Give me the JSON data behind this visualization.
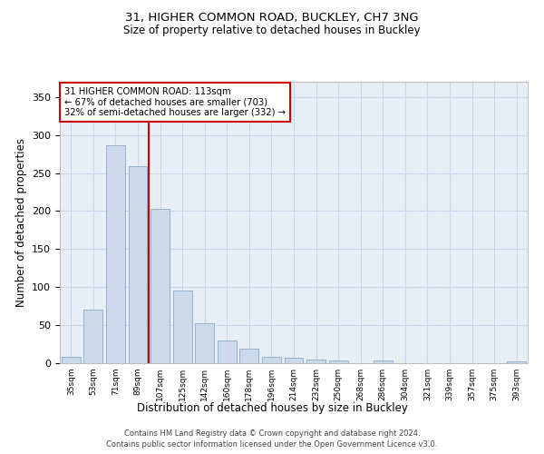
{
  "title1": "31, HIGHER COMMON ROAD, BUCKLEY, CH7 3NG",
  "title2": "Size of property relative to detached houses in Buckley",
  "xlabel": "Distribution of detached houses by size in Buckley",
  "ylabel": "Number of detached properties",
  "bar_color": "#ccd9ea",
  "bar_edge_color": "#8baac8",
  "categories": [
    "35sqm",
    "53sqm",
    "71sqm",
    "89sqm",
    "107sqm",
    "125sqm",
    "142sqm",
    "160sqm",
    "178sqm",
    "196sqm",
    "214sqm",
    "232sqm",
    "250sqm",
    "268sqm",
    "286sqm",
    "304sqm",
    "321sqm",
    "339sqm",
    "357sqm",
    "375sqm",
    "393sqm"
  ],
  "values": [
    8,
    71,
    287,
    259,
    203,
    95,
    52,
    30,
    19,
    8,
    7,
    5,
    4,
    0,
    4,
    0,
    0,
    0,
    0,
    0,
    2
  ],
  "vline_color": "#cc0000",
  "vline_pos": 3.5,
  "annotation_line1": "31 HIGHER COMMON ROAD: 113sqm",
  "annotation_line2": "← 67% of detached houses are smaller (703)",
  "annotation_line3": "32% of semi-detached houses are larger (332) →",
  "annotation_box_color": "white",
  "annotation_box_edge_color": "#cc0000",
  "ylim": [
    0,
    370
  ],
  "yticks": [
    0,
    50,
    100,
    150,
    200,
    250,
    300,
    350
  ],
  "grid_color": "#cdd6e8",
  "bg_color": "#e8eef6",
  "footer1": "Contains HM Land Registry data © Crown copyright and database right 2024.",
  "footer2": "Contains public sector information licensed under the Open Government Licence v3.0."
}
